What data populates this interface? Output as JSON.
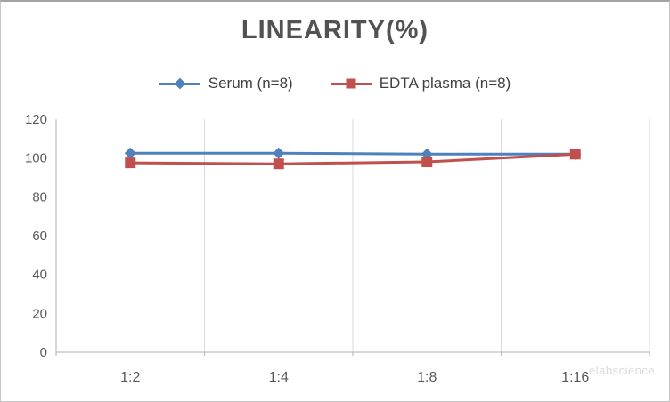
{
  "chart_data": {
    "type": "line",
    "title": "LINEARITY(%)",
    "categories": [
      "1:2",
      "1:4",
      "1:8",
      "1:16"
    ],
    "series": [
      {
        "name": "Serum (n=8)",
        "color": "#4F81BD",
        "marker": "diamond",
        "values": [
          102.5,
          102.5,
          102,
          102
        ]
      },
      {
        "name": "EDTA plasma (n=8)",
        "color": "#C0504D",
        "marker": "square",
        "values": [
          97.5,
          97,
          98,
          102
        ]
      }
    ],
    "xlabel": "",
    "ylabel": "",
    "ylim": [
      0,
      120
    ],
    "yticks": [
      0,
      20,
      40,
      60,
      80,
      100,
      120
    ],
    "grid": "vertical",
    "legend_position": "top",
    "colors": {
      "axis_line": "#BFBFBF",
      "gridline": "#D9D9D9",
      "tick_label": "#595959",
      "title": "#525252",
      "legend_text": "#404040"
    }
  },
  "watermark": {
    "text": "elabscience"
  }
}
